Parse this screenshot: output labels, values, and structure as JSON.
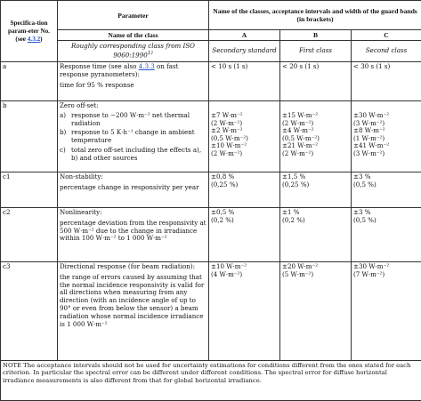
{
  "header": {
    "col_spec_no_pre": "Specifica-tion param-eter No. (see ",
    "col_spec_link": "4.3.2",
    "col_spec_post": ")",
    "col_param": "Parameter",
    "col_classes": "Name of the classes, acceptance intervals and width of the guard bands (in brackets)",
    "name_of_class": "Name of the class",
    "class_A": "A",
    "class_B": "B",
    "class_C": "C",
    "iso_class_label": "Roughly corresponding class from ISO 9060:1990",
    "iso_class_sup": "1)",
    "iso_A": "Secondary standard",
    "iso_B": "First class",
    "iso_C": "Second class"
  },
  "rows": {
    "a": {
      "id": "a",
      "line1_pre": "Response time (see also ",
      "line1_link": "4.3.3",
      "line1_post": " on fast response pyranometers):",
      "line2": "time for 95 % response",
      "A": "< 10 s (1 s)",
      "B": "< 20 s (1 s)",
      "C": "< 30 s (1 s)"
    },
    "b": {
      "id": "b",
      "title": "Zero off-set:",
      "s1_lbl": "a)",
      "s1_txt": "response to −200 W·m⁻² net thermal radiation",
      "s2_lbl": "b)",
      "s2_txt": "response to 5 K·h⁻¹ change in ambient temperature",
      "s3_lbl": "c)",
      "s3_txt": "total zero off-set including the effects a), b) and other sources",
      "A1": "±7 W·m⁻²",
      "A1g": "(2 W·m⁻²)",
      "A2": "±2 W·m⁻²",
      "A2g": "(0,5 W·m⁻²)",
      "A3": "±10 W·m⁻²",
      "A3g": "(2 W·m⁻²)",
      "B1": "±15 W·m⁻²",
      "B1g": "(2 W·m⁻²)",
      "B2": "±4 W·m⁻²",
      "B2g": "(0,5 W·m⁻²)",
      "B3": "±21 W·m⁻²",
      "B3g": "(2 W·m⁻²)",
      "C1": "±30 W·m⁻²",
      "C1g": "(3 W·m⁻²)",
      "C2": "±8 W·m⁻²",
      "C2g": "(1 W·m⁻²)",
      "C3": "±41 W·m⁻²",
      "C3g": "(3 W·m⁻²)"
    },
    "c1": {
      "id": "c1",
      "title": "Non-stability:",
      "desc": "percentage change in responsivity per year",
      "A": "±0,8 %",
      "Ag": "(0,25 %)",
      "B": "±1,5 %",
      "Bg": "(0,25 %)",
      "C": "±3 %",
      "Cg": "(0,5 %)"
    },
    "c2": {
      "id": "c2",
      "title": "Nonlinearity:",
      "desc": "percentage deviation from the responsivity at 500 W·m⁻² due to the change in irradiance within 100 W·m⁻² to 1 000 W·m⁻²",
      "A": "±0,5 %",
      "Ag": "(0,2 %)",
      "B": "±1 %",
      "Bg": "(0,2 %)",
      "C": "±3 %",
      "Cg": "(0,5 %)"
    },
    "c3": {
      "id": "c3",
      "title": "Directional response (for beam radiation):",
      "desc": "the range of errors caused by assuming that the normal incidence responsivity is valid for all directions when measuring from any direction (with an incidence angle of up to 90° or even from below the sensor) a beam radiation whose normal incidence irradiance is 1 000 W·m⁻²",
      "A": "±10 W·m⁻²",
      "Ag": "(4 W·m⁻²)",
      "B": "±20 W·m⁻²",
      "Bg": "(5 W·m⁻²)",
      "C": "±30 W·m⁻²",
      "Cg": "(7 W·m⁻²)"
    }
  },
  "note": "NOTE   The acceptance intervals should not be used for uncertainty estimations for conditions different from the ones stated for each criterion. In particular the spectral error can be different under different conditions. The spectral error for diffuse horizontal irradiance measurements is also different from that for global horizontal irradiance."
}
